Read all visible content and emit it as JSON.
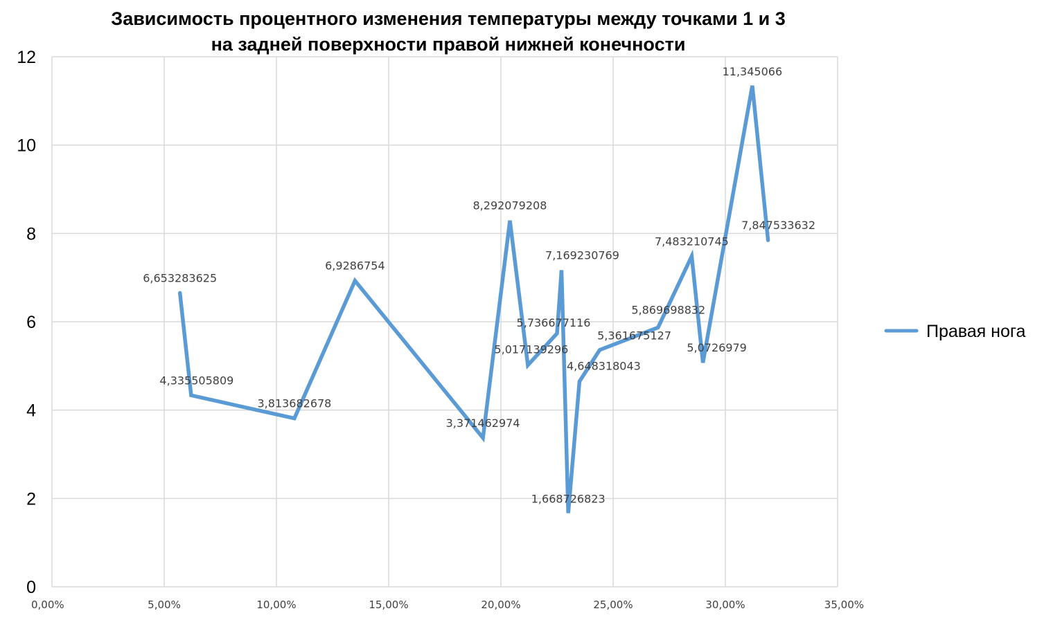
{
  "chart_data": {
    "type": "line",
    "title_lines": [
      "Зависимость процентного изменения температуры между точками 1 и 3",
      "на задней поверхности правой нижней конечности"
    ],
    "xlabel": "",
    "ylabel": "",
    "xlim": [
      0,
      0.35
    ],
    "ylim": [
      0,
      12
    ],
    "xticks": [
      {
        "value": 0.0,
        "label": "0,00%"
      },
      {
        "value": 0.05,
        "label": "5,00%"
      },
      {
        "value": 0.1,
        "label": "10,00%"
      },
      {
        "value": 0.15,
        "label": "15,00%"
      },
      {
        "value": 0.2,
        "label": "20,00%"
      },
      {
        "value": 0.25,
        "label": "25,00%"
      },
      {
        "value": 0.3,
        "label": "30,00%"
      },
      {
        "value": 0.35,
        "label": "35,00%"
      }
    ],
    "yticks": [
      {
        "value": 0,
        "label": "0"
      },
      {
        "value": 2,
        "label": "2"
      },
      {
        "value": 4,
        "label": "4"
      },
      {
        "value": 6,
        "label": "6"
      },
      {
        "value": 8,
        "label": "8"
      },
      {
        "value": 10,
        "label": "10"
      },
      {
        "value": 12,
        "label": "12"
      }
    ],
    "grid": true,
    "legend": {
      "position": "right"
    },
    "series": [
      {
        "name": "Правая нога",
        "color": "#5B9BD5",
        "points": [
          {
            "x": 0.057,
            "y": 6.653283625,
            "label": "6,653283625"
          },
          {
            "x": 0.062,
            "y": 4.335505809,
            "label": "4,335505809"
          },
          {
            "x": 0.108,
            "y": 3.813682678,
            "label": "3,813682678"
          },
          {
            "x": 0.135,
            "y": 6.9286754,
            "label": "6,9286754"
          },
          {
            "x": 0.192,
            "y": 3.371462974,
            "label": "3,371462974"
          },
          {
            "x": 0.204,
            "y": 8.292079208,
            "label": "8,292079208"
          },
          {
            "x": 0.212,
            "y": 5.017139296,
            "label": "5,017139296"
          },
          {
            "x": 0.225,
            "y": 5.736677116,
            "label": "5,736677116"
          },
          {
            "x": 0.227,
            "y": 7.169230769,
            "label": "7,169230769"
          },
          {
            "x": 0.23,
            "y": 1.668726823,
            "label": "1,668726823"
          },
          {
            "x": 0.235,
            "y": 4.648318043,
            "label": "4,648318043"
          },
          {
            "x": 0.244,
            "y": 5.361675127,
            "label": "5,361675127"
          },
          {
            "x": 0.27,
            "y": 5.869698832,
            "label": "5,869698832"
          },
          {
            "x": 0.285,
            "y": 7.483210745,
            "label": "7,483210745"
          },
          {
            "x": 0.29,
            "y": 5.0726979,
            "label": "5,0726979"
          },
          {
            "x": 0.312,
            "y": 11.345066,
            "label": "11,345066"
          },
          {
            "x": 0.319,
            "y": 7.847533632,
            "label": "7,847533632"
          }
        ]
      }
    ]
  }
}
